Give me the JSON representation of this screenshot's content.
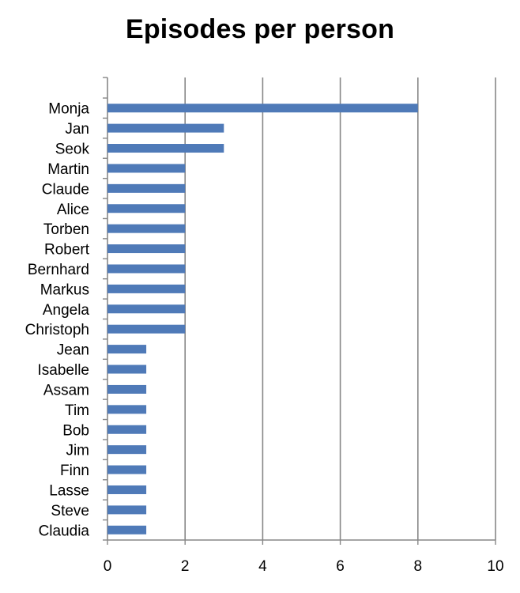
{
  "chart_data": {
    "type": "bar",
    "orientation": "horizontal",
    "title": "Episodes per person",
    "xlabel": "",
    "ylabel": "",
    "xlim": [
      0,
      10
    ],
    "x_ticks": [
      0,
      2,
      4,
      6,
      8,
      10
    ],
    "grid": "vertical",
    "legend": "none",
    "bar_color": "#4f7ab8",
    "categories": [
      "Monja",
      "Jan",
      "Seok",
      "Martin",
      "Claude",
      "Alice",
      "Torben",
      "Robert",
      "Bernhard",
      "Markus",
      "Angela",
      "Christoph",
      "Jean",
      "Isabelle",
      "Assam",
      "Tim",
      "Bob",
      "Jim",
      "Finn",
      "Lasse",
      "Steve",
      "Claudia"
    ],
    "values": [
      8,
      3,
      3,
      2,
      2,
      2,
      2,
      2,
      2,
      2,
      2,
      2,
      1,
      1,
      1,
      1,
      1,
      1,
      1,
      1,
      1,
      1
    ]
  }
}
